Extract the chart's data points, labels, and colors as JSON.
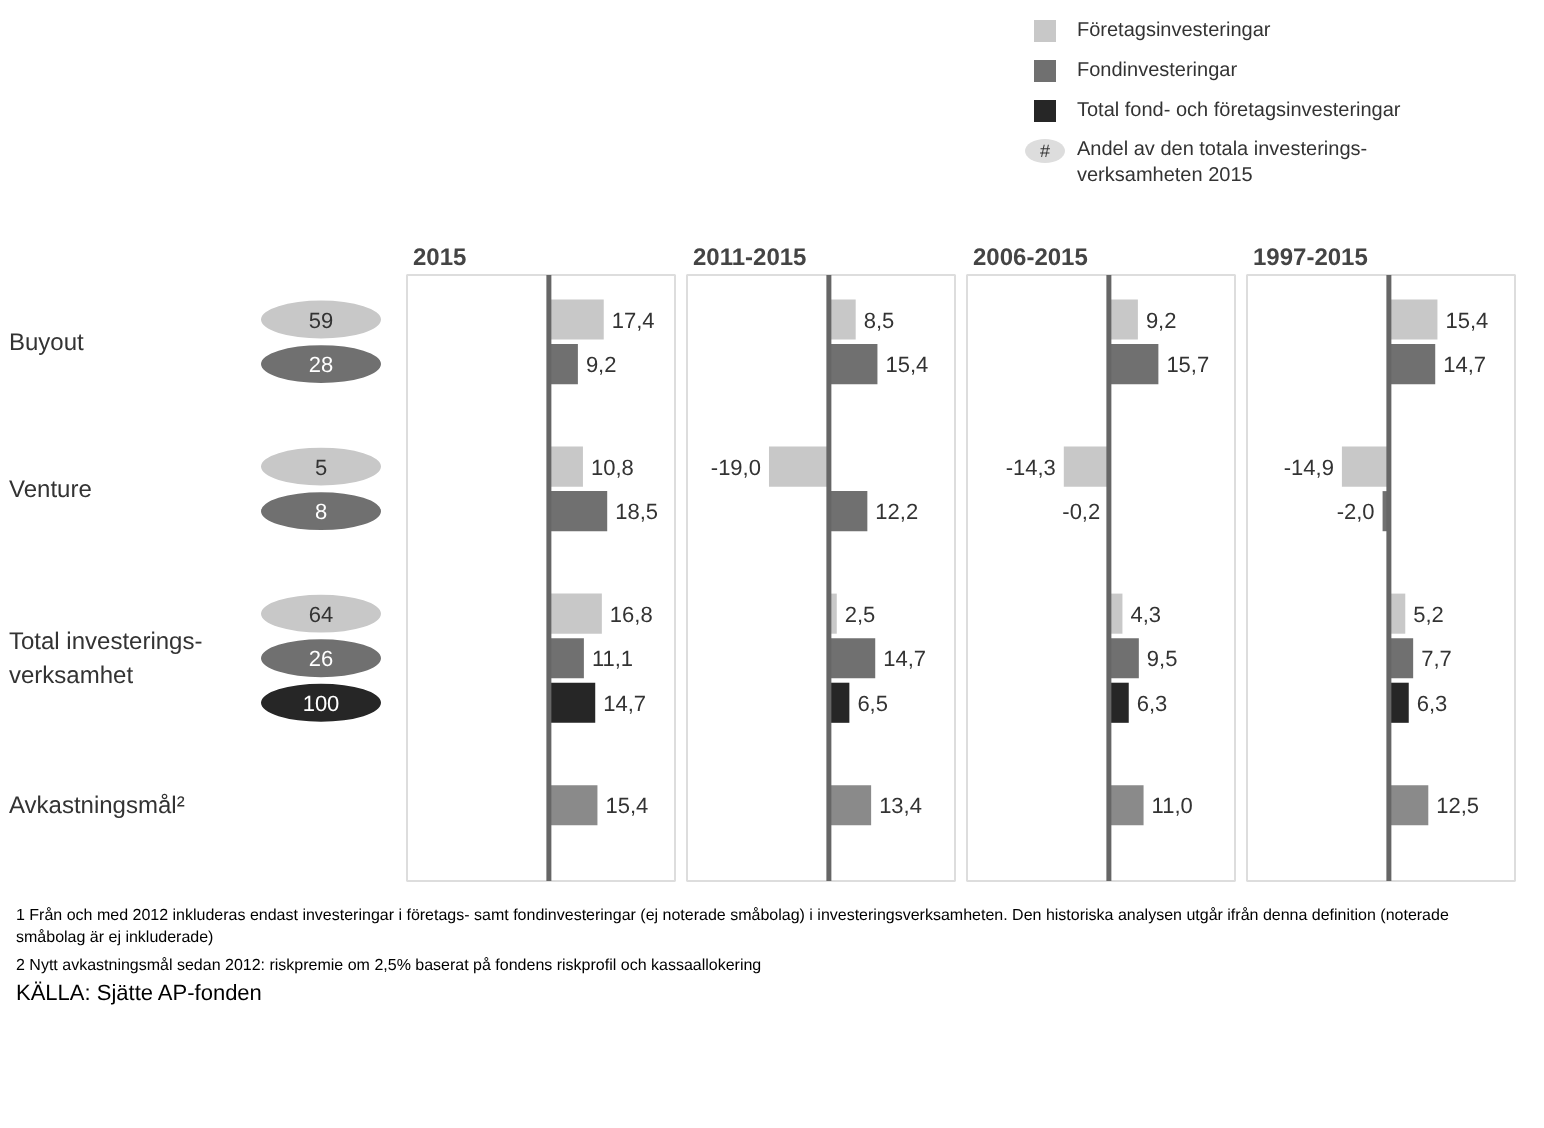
{
  "chart_data": [
    {
      "type": "bar",
      "orientation": "horizontal",
      "title": "2015",
      "categories": [
        "Buyout",
        "Venture",
        "Total investerings-\nverksamhet",
        "Avkastningsmål²"
      ],
      "xlim": [
        -45,
        40
      ],
      "tick_labels": "y",
      "legend": "top right",
      "series": [
        {
          "name": "Företagsinvesteringar",
          "color": "#c8c8c8",
          "values": [
            17.4,
            10.8,
            16.8,
            null
          ],
          "value_labels": [
            "17,4",
            "10,8",
            "16,8",
            null
          ]
        },
        {
          "name": "Fondinvesteringar",
          "color": "#707070",
          "values": [
            9.2,
            18.5,
            11.1,
            null
          ],
          "value_labels": [
            "9,2",
            "18,5",
            "11,1",
            null
          ]
        },
        {
          "name": "Total fond- och företagsinvesteringar",
          "color": "#262626",
          "values": [
            null,
            null,
            14.7,
            null
          ],
          "value_labels": [
            null,
            null,
            "14,7",
            null
          ]
        },
        {
          "color": "#8a8a8a",
          "values": [
            null,
            null,
            null,
            15.4
          ],
          "value_labels": [
            null,
            null,
            null,
            "15,4"
          ]
        }
      ],
      "annotations": [
        "#",
        "Andel av den totala investerings-\nverksamheten 2015",
        "59",
        "28",
        "5",
        "8",
        "64",
        "26",
        "100",
        "1 Från och med 2012 inkluderas endast investeringar i företags- samt fondinvesteringar (ej noterade småbolag) i investeringsverksamheten. Den historiska analysen utgår ifrån denna definition (noterade småbolag är ej inkluderade)",
        "2 Nytt avkastningsmål sedan 2012: riskpremie om 2,5% baserat på fondens riskprofil och kassaallokering",
        "KÄLLA: Sjätte AP-fonden"
      ]
    },
    {
      "type": "bar",
      "orientation": "horizontal",
      "title": "2011-2015",
      "categories": [
        "Buyout",
        "Venture",
        "Total investerings-\nverksamhet",
        "Avkastningsmål²"
      ],
      "xlim": [
        -45,
        40
      ],
      "tick_labels": false,
      "series": [
        {
          "color": "#c8c8c8",
          "values": [
            8.5,
            -19.0,
            2.5,
            null
          ],
          "value_labels": [
            "8,5",
            "-19,0",
            "2,5",
            null
          ]
        },
        {
          "color": "#707070",
          "values": [
            15.4,
            12.2,
            14.7,
            null
          ],
          "value_labels": [
            "15,4",
            "12,2",
            "14,7",
            null
          ]
        },
        {
          "color": "#262626",
          "values": [
            null,
            null,
            6.5,
            null
          ],
          "value_labels": [
            null,
            null,
            "6,5",
            null
          ]
        },
        {
          "color": "#8a8a8a",
          "values": [
            null,
            null,
            null,
            13.4
          ],
          "value_labels": [
            null,
            null,
            null,
            "13,4"
          ]
        }
      ]
    },
    {
      "type": "bar",
      "orientation": "horizontal",
      "title": "2006-2015",
      "categories": [
        "Buyout",
        "Venture",
        "Total investerings-\nverksamhet",
        "Avkastningsmål²"
      ],
      "xlim": [
        -45,
        40
      ],
      "tick_labels": false,
      "series": [
        {
          "color": "#c8c8c8",
          "values": [
            9.2,
            -14.3,
            4.3,
            null
          ],
          "value_labels": [
            "9,2",
            "-14,3",
            "4,3",
            null
          ]
        },
        {
          "color": "#707070",
          "values": [
            15.7,
            -0.2,
            9.5,
            null
          ],
          "value_labels": [
            "15,7",
            "-0,2",
            "9,5",
            null
          ]
        },
        {
          "color": "#262626",
          "values": [
            null,
            null,
            6.3,
            null
          ],
          "value_labels": [
            null,
            null,
            "6,3",
            null
          ]
        },
        {
          "color": "#8a8a8a",
          "values": [
            null,
            null,
            null,
            11.0
          ],
          "value_labels": [
            null,
            null,
            null,
            "11,0"
          ]
        }
      ]
    },
    {
      "type": "bar",
      "orientation": "horizontal",
      "title": "1997-2015",
      "categories": [
        "Buyout",
        "Venture",
        "Total investerings-\nverksamhet",
        "Avkastningsmål²"
      ],
      "xlim": [
        -45,
        40
      ],
      "tick_labels": false,
      "series": [
        {
          "color": "#c8c8c8",
          "values": [
            15.4,
            -14.9,
            5.2,
            null
          ],
          "value_labels": [
            "15,4",
            "-14,9",
            "5,2",
            null
          ]
        },
        {
          "color": "#707070",
          "values": [
            14.7,
            -2.0,
            7.7,
            null
          ],
          "value_labels": [
            "14,7",
            "-2,0",
            "7,7",
            null
          ]
        },
        {
          "color": "#262626",
          "values": [
            null,
            null,
            6.3,
            null
          ],
          "value_labels": [
            null,
            null,
            "6,3",
            null
          ]
        },
        {
          "color": "#8a8a8a",
          "values": [
            null,
            null,
            null,
            12.5
          ],
          "value_labels": [
            null,
            null,
            null,
            "12,5"
          ]
        }
      ]
    }
  ]
}
